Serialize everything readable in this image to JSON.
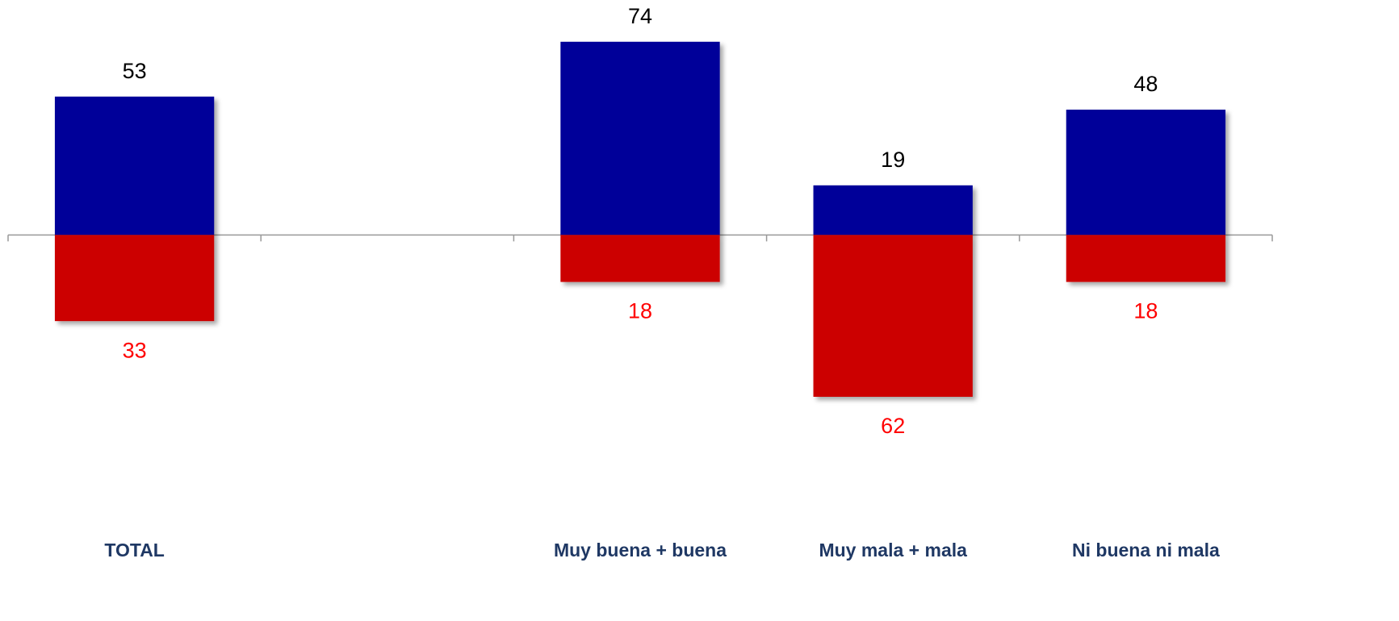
{
  "chart_data": {
    "type": "bar",
    "categories": [
      "TOTAL",
      null,
      "Muy buena + buena",
      "Muy mala + mala",
      "Ni buena ni mala"
    ],
    "series": [
      {
        "color": "#000099",
        "label_color": "#000000",
        "values": [
          53,
          null,
          74,
          19,
          48
        ]
      },
      {
        "color": "#cc0000",
        "label_color": "#ff0000",
        "values": [
          -33,
          null,
          -18,
          -62,
          -18
        ],
        "value_labels": [
          "33",
          null,
          "18",
          "62",
          "18"
        ]
      }
    ],
    "ylim": [
      -100,
      90
    ]
  }
}
